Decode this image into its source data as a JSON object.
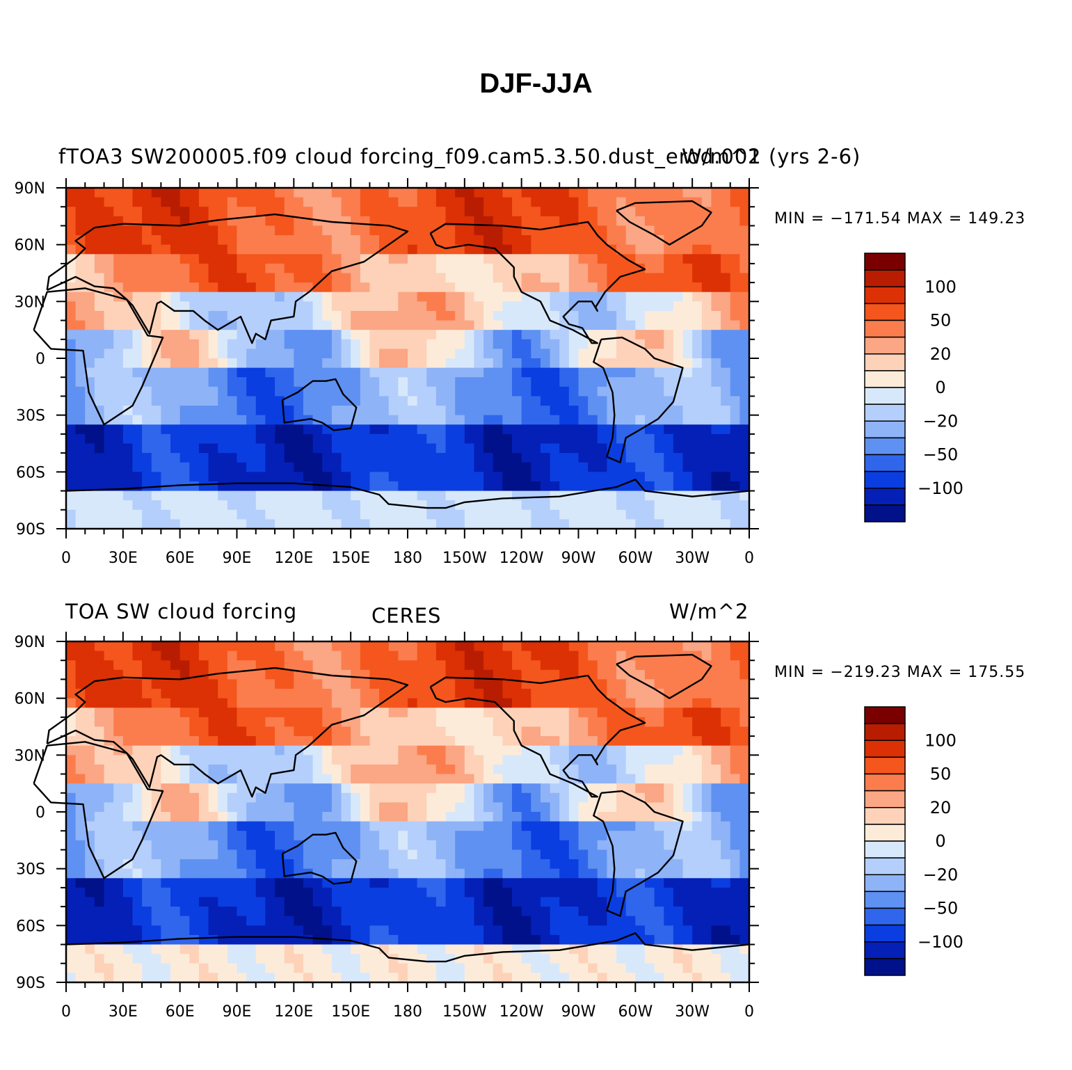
{
  "title": "DJF-JJA",
  "axes": {
    "lat_ticks": [
      "90N",
      "60N",
      "30N",
      "0",
      "30S",
      "60S",
      "90S"
    ],
    "lon_ticks": [
      "0",
      "30E",
      "60E",
      "90E",
      "120E",
      "150E",
      "180",
      "150W",
      "120W",
      "90W",
      "60W",
      "30W",
      "0"
    ]
  },
  "colorbar": {
    "labels": [
      "100",
      "50",
      "20",
      "0",
      "−20",
      "−50",
      "−100"
    ],
    "colors": [
      "#7a0000",
      "#b81d02",
      "#dc3105",
      "#f4561d",
      "#fb7d4e",
      "#fba684",
      "#fdd2b9",
      "#fdebd9",
      "#d8e8fb",
      "#b4cffb",
      "#8fb3f7",
      "#5f91f2",
      "#2f66ec",
      "#0b3ee0",
      "#0420b7",
      "#00118a"
    ]
  },
  "panels": [
    {
      "left_text": "fTOA3 SW200005.f09 cloud forcing_f09.cam5.3.50.dust_erod.001 (yrs 2-6)",
      "center_text": "",
      "right_text": "W/m^2",
      "min_max": "MIN = −171.54  MAX = 149.23"
    },
    {
      "left_text": "TOA SW cloud forcing",
      "center_text": "CERES",
      "right_text": "W/m^2",
      "min_max": "MIN = −219.23  MAX = 175.55"
    }
  ]
}
